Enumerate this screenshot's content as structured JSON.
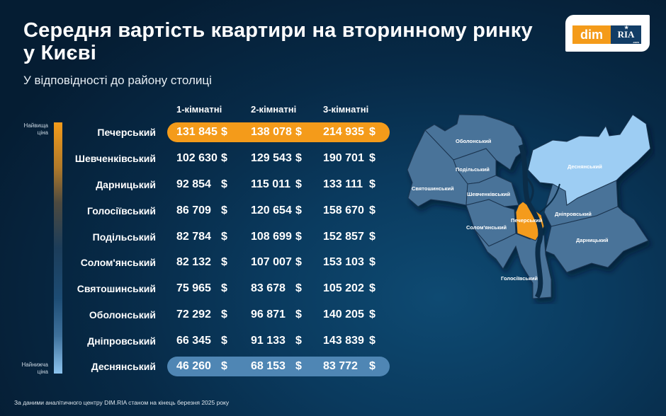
{
  "header": {
    "title": "Середня вартість квартири на вторинному ринку у Києві",
    "subtitle": "У відповідності до району столиці"
  },
  "logo": {
    "left": "dim",
    "right": "RIA",
    "suffix": ".com"
  },
  "legend": {
    "top": "Найвища ціна",
    "top_l1": "Найвища",
    "top_l2": "ціна",
    "bottom_l1": "Найнижча",
    "bottom_l2": "ціна"
  },
  "table": {
    "columns": [
      "1-кімнатні",
      "2-кімнатні",
      "3-кімнатні"
    ],
    "currency": "$",
    "rows": [
      {
        "district": "Печерський",
        "values": [
          "131 845",
          "138 078",
          "214 935"
        ],
        "highlight": "high"
      },
      {
        "district": "Шевченківський",
        "values": [
          "102 630",
          "129 543",
          "190 701"
        ]
      },
      {
        "district": "Дарницький",
        "values": [
          "92 854",
          "115 011",
          "133 111"
        ]
      },
      {
        "district": "Голосіївський",
        "values": [
          "86 709",
          "120 654",
          "158 670"
        ]
      },
      {
        "district": "Подільський",
        "values": [
          "82 784",
          "108 699",
          "152 857"
        ]
      },
      {
        "district": "Солом'янський",
        "values": [
          "82 132",
          "107 007",
          "153 103"
        ]
      },
      {
        "district": "Святошинський",
        "values": [
          "75 965",
          "83 678",
          "105 202"
        ]
      },
      {
        "district": "Оболонський",
        "values": [
          "72 292",
          "96 871",
          "140 205"
        ]
      },
      {
        "district": "Дніпровський",
        "values": [
          "66 345",
          "91 133",
          "143 839"
        ]
      },
      {
        "district": "Деснянський",
        "values": [
          "46 260",
          "68 153",
          "83 772"
        ],
        "highlight": "low"
      }
    ]
  },
  "map": {
    "labels": {
      "obolonskyi": "Оболонський",
      "podilskyi": "Подільський",
      "sviatoshynskyi": "Святошинський",
      "shevchenkivskyi": "Шевченківський",
      "desnianskyi": "Деснянський",
      "pecherskyi": "Печерський",
      "dniprovskyi": "Дніпровський",
      "solomianskyi": "Солом'янський",
      "darnytskyi": "Дарницький",
      "holosiivskyi": "Голосіївський"
    }
  },
  "footer": "За даними аналітичного центру DIM.RIA станом на кінець березня 2025 року",
  "colors": {
    "highest": "#f49b1a",
    "lowest": "#8cc3ee",
    "map_district": "#4a7399",
    "background_dark": "#051d33",
    "background_light": "#0e4a72"
  },
  "chart_data": {
    "type": "table",
    "title": "Середня вартість квартири на вторинному ринку у Києві",
    "subtitle": "У відповідності до району столиці",
    "unit": "$",
    "categories": [
      "Печерський",
      "Шевченківський",
      "Дарницький",
      "Голосіївський",
      "Подільський",
      "Солом'янський",
      "Святошинський",
      "Оболонський",
      "Дніпровський",
      "Деснянський"
    ],
    "series": [
      {
        "name": "1-кімнатні",
        "values": [
          131845,
          102630,
          92854,
          86709,
          82784,
          82132,
          75965,
          72292,
          66345,
          46260
        ]
      },
      {
        "name": "2-кімнатні",
        "values": [
          138078,
          129543,
          115011,
          120654,
          108699,
          107007,
          83678,
          96871,
          91133,
          68153
        ]
      },
      {
        "name": "3-кімнатні",
        "values": [
          214935,
          190701,
          133111,
          158670,
          152857,
          153103,
          105202,
          140205,
          143839,
          83772
        ]
      }
    ],
    "legend": {
      "top": "Найвища ціна",
      "bottom": "Найнижча ціна"
    },
    "highlighted": {
      "highest": "Печерський",
      "lowest": "Деснянський"
    },
    "note": "За даними аналітичного центру DIM.RIA станом на кінець березня 2025 року"
  }
}
